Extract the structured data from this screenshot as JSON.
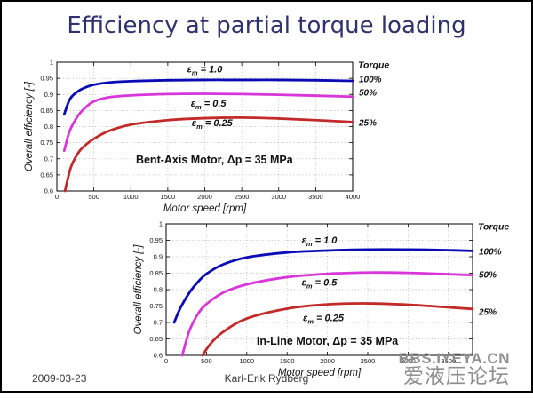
{
  "slide": {
    "title": "Efficiency at partial torque loading",
    "footer": {
      "date": "2009-03-23",
      "author": "Karl-Erik Rydberg"
    },
    "watermark": {
      "line1": "BBS.IYEYA.CN",
      "line2": "爱液压论坛"
    },
    "colors": {
      "title": "#31316e",
      "torque_100": "#0b0bb6",
      "torque_50": "#d836d8",
      "torque_25": "#c32a2a",
      "watermark": "#8f8f8f"
    }
  },
  "chart_data": [
    {
      "type": "line",
      "name": "bent-axis-motor",
      "xlabel": "Motor speed [rpm]",
      "ylabel": "Overall efficiency [-]",
      "x_min": 0,
      "x_max": 4000,
      "y_min": 0.6,
      "y_max": 1.0,
      "grid": true,
      "x_tick_values": [
        0,
        500,
        1000,
        1500,
        2000,
        2500,
        3000,
        3500,
        4000
      ],
      "x_tick_labels": [
        "0",
        "500",
        "1000",
        "1500",
        "2000",
        "2500",
        "3000",
        "3500",
        "4000"
      ],
      "y_tick_values": [
        0.6,
        0.65,
        0.7,
        0.75,
        0.8,
        0.85,
        0.9,
        0.95,
        1.0
      ],
      "y_tick_labels": [
        "0.6",
        "0.65",
        "0.7",
        "0.75",
        "0.8",
        "0.85",
        "0.9",
        "0.95",
        "1"
      ],
      "series": [
        {
          "name": "εm = 1.0",
          "torque": "100%",
          "color": "#0b0bb6",
          "points": [
            [
              100,
              0.838
            ],
            [
              150,
              0.872
            ],
            [
              200,
              0.893
            ],
            [
              300,
              0.912
            ],
            [
              400,
              0.923
            ],
            [
              500,
              0.93
            ],
            [
              700,
              0.937
            ],
            [
              1000,
              0.941
            ],
            [
              1500,
              0.944
            ],
            [
              2000,
              0.945
            ],
            [
              2500,
              0.945
            ],
            [
              3000,
              0.945
            ],
            [
              3500,
              0.944
            ],
            [
              4000,
              0.942
            ]
          ]
        },
        {
          "name": "εm = 0.5",
          "torque": "50%",
          "color": "#d836d8",
          "points": [
            [
              100,
              0.725
            ],
            [
              150,
              0.77
            ],
            [
              200,
              0.8
            ],
            [
              300,
              0.838
            ],
            [
              400,
              0.862
            ],
            [
              500,
              0.878
            ],
            [
              700,
              0.891
            ],
            [
              1000,
              0.897
            ],
            [
              1500,
              0.901
            ],
            [
              2000,
              0.902
            ],
            [
              2500,
              0.901
            ],
            [
              3000,
              0.899
            ],
            [
              3500,
              0.896
            ],
            [
              4000,
              0.893
            ]
          ]
        },
        {
          "name": "εm = 0.25",
          "torque": "25%",
          "color": "#c32a2a",
          "points": [
            [
              110,
              0.6
            ],
            [
              150,
              0.64
            ],
            [
              200,
              0.68
            ],
            [
              300,
              0.722
            ],
            [
              400,
              0.745
            ],
            [
              500,
              0.762
            ],
            [
              700,
              0.786
            ],
            [
              1000,
              0.806
            ],
            [
              1500,
              0.82
            ],
            [
              2000,
              0.826
            ],
            [
              2500,
              0.828
            ],
            [
              3000,
              0.825
            ],
            [
              3500,
              0.82
            ],
            [
              4000,
              0.814
            ]
          ]
        }
      ],
      "annotations": [
        {
          "x": 2000,
          "y": 0.968,
          "parts": [
            [
              "ε",
              0
            ],
            [
              "m",
              1
            ],
            [
              " = 1.0",
              0
            ]
          ],
          "bold": true,
          "italic": true,
          "size": 11
        },
        {
          "x": 2050,
          "y": 0.862,
          "parts": [
            [
              "ε",
              0
            ],
            [
              "m",
              1
            ],
            [
              " = 0.5",
              0
            ]
          ],
          "bold": true,
          "italic": true,
          "size": 11
        },
        {
          "x": 2100,
          "y": 0.802,
          "parts": [
            [
              "ε",
              0
            ],
            [
              "m",
              1
            ],
            [
              " = 0.25",
              0
            ]
          ],
          "bold": true,
          "italic": true,
          "size": 11
        },
        {
          "x": 2130,
          "y": 0.685,
          "text": "Bent-Axis Motor, Δp = 35 MPa",
          "bold": true,
          "italic": false,
          "size": 12.5
        }
      ],
      "torque_panel": {
        "title": "Torque",
        "entries": [
          {
            "label": "100%",
            "y": 0.948
          },
          {
            "label": "50%",
            "y": 0.906
          },
          {
            "label": "25%",
            "y": 0.813
          }
        ]
      }
    },
    {
      "type": "line",
      "name": "in-line-motor",
      "xlabel": "Motor speed [rpm]",
      "ylabel": "Overall efficiency [-]",
      "x_min": 0,
      "x_max": 3800,
      "y_min": 0.6,
      "y_max": 1.0,
      "grid": true,
      "x_tick_values": [
        0,
        500,
        1000,
        1500,
        2000,
        2500,
        3000,
        3500
      ],
      "x_tick_labels": [
        "0",
        "500",
        "1000",
        "1500",
        "2000",
        "2500",
        "3000",
        "3500"
      ],
      "y_tick_values": [
        0.6,
        0.65,
        0.7,
        0.75,
        0.8,
        0.85,
        0.9,
        0.95,
        1.0
      ],
      "y_tick_labels": [
        "0.6",
        "0.65",
        "0.7",
        "0.75",
        "0.8",
        "0.85",
        "0.9",
        "0.95",
        "1"
      ],
      "series": [
        {
          "name": "εm = 1.0",
          "torque": "100%",
          "color": "#0b0bb6",
          "points": [
            [
              100,
              0.7
            ],
            [
              150,
              0.73
            ],
            [
              200,
              0.755
            ],
            [
              300,
              0.795
            ],
            [
              400,
              0.825
            ],
            [
              500,
              0.848
            ],
            [
              700,
              0.876
            ],
            [
              1000,
              0.898
            ],
            [
              1500,
              0.913
            ],
            [
              2000,
              0.919
            ],
            [
              2500,
              0.922
            ],
            [
              3000,
              0.922
            ],
            [
              3500,
              0.92
            ],
            [
              3800,
              0.918
            ]
          ]
        },
        {
          "name": "εm = 0.5",
          "torque": "50%",
          "color": "#d836d8",
          "points": [
            [
              200,
              0.6
            ],
            [
              250,
              0.645
            ],
            [
              300,
              0.682
            ],
            [
              400,
              0.728
            ],
            [
              500,
              0.756
            ],
            [
              700,
              0.79
            ],
            [
              1000,
              0.816
            ],
            [
              1500,
              0.838
            ],
            [
              2000,
              0.848
            ],
            [
              2500,
              0.852
            ],
            [
              3000,
              0.851
            ],
            [
              3500,
              0.847
            ],
            [
              3800,
              0.844
            ]
          ]
        },
        {
          "name": "εm = 0.25",
          "torque": "25%",
          "color": "#c32a2a",
          "points": [
            [
              450,
              0.6
            ],
            [
              550,
              0.635
            ],
            [
              700,
              0.67
            ],
            [
              1000,
              0.712
            ],
            [
              1500,
              0.742
            ],
            [
              2000,
              0.755
            ],
            [
              2500,
              0.758
            ],
            [
              3000,
              0.754
            ],
            [
              3500,
              0.746
            ],
            [
              3800,
              0.741
            ]
          ]
        }
      ],
      "annotations": [
        {
          "x": 1900,
          "y": 0.94,
          "parts": [
            [
              "ε",
              0
            ],
            [
              "m",
              1
            ],
            [
              " = 1.0",
              0
            ]
          ],
          "bold": true,
          "italic": true,
          "size": 11
        },
        {
          "x": 1900,
          "y": 0.812,
          "parts": [
            [
              "ε",
              0
            ],
            [
              "m",
              1
            ],
            [
              " = 0.5",
              0
            ]
          ],
          "bold": true,
          "italic": true,
          "size": 11
        },
        {
          "x": 1950,
          "y": 0.704,
          "parts": [
            [
              "ε",
              0
            ],
            [
              "m",
              1
            ],
            [
              " = 0.25",
              0
            ]
          ],
          "bold": true,
          "italic": true,
          "size": 11
        },
        {
          "x": 2000,
          "y": 0.633,
          "text": "In-Line Motor, Δp = 35 MPa",
          "bold": true,
          "italic": false,
          "size": 12.5
        }
      ],
      "torque_panel": {
        "title": "Torque",
        "entries": [
          {
            "label": "100%",
            "y": 0.916
          },
          {
            "label": "50%",
            "y": 0.846
          },
          {
            "label": "25%",
            "y": 0.732
          }
        ]
      }
    }
  ]
}
